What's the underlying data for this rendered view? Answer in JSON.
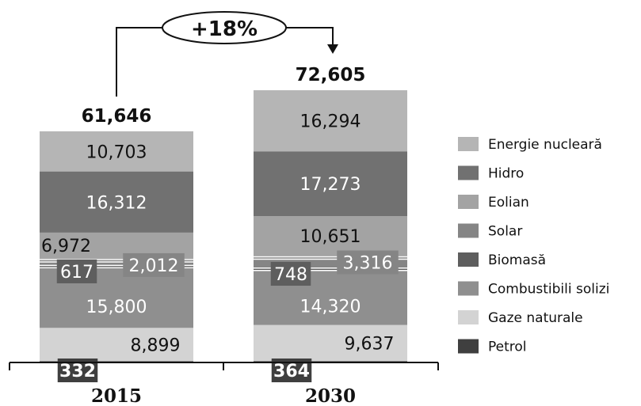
{
  "chart_data": {
    "type": "bar",
    "stacked": true,
    "categories": [
      "2015",
      "2030"
    ],
    "totals": [
      "61,646",
      "72,605"
    ],
    "growth_label": "+18%",
    "series": [
      {
        "name": "Petrol",
        "values": [
          332,
          364
        ],
        "labels": [
          "332",
          "364"
        ],
        "color": "#3f3f3f"
      },
      {
        "name": "Gaze naturale",
        "values": [
          8899,
          9637
        ],
        "labels": [
          "8,899",
          "9,637"
        ],
        "color": "#d3d3d3"
      },
      {
        "name": "Combustibili solizi",
        "values": [
          15800,
          14320
        ],
        "labels": [
          "15,800",
          "14,320"
        ],
        "color": "#8f8f8f"
      },
      {
        "name": "Biomasă",
        "values": [
          617,
          748
        ],
        "labels": [
          "617",
          "748"
        ],
        "color": "#5e5e5e"
      },
      {
        "name": "Solar",
        "values": [
          2012,
          3316
        ],
        "labels": [
          "2,012",
          "3,316"
        ],
        "color": "#858585"
      },
      {
        "name": "Eolian",
        "values": [
          6972,
          10651
        ],
        "labels": [
          "6,972",
          "10,651"
        ],
        "color": "#a3a3a3"
      },
      {
        "name": "Hidro",
        "values": [
          16312,
          17273
        ],
        "labels": [
          "16,312",
          "17,273"
        ],
        "color": "#717171"
      },
      {
        "name": "Energie nucleară",
        "values": [
          10703,
          16294
        ],
        "labels": [
          "10,703",
          "16,294"
        ],
        "color": "#b5b5b5"
      }
    ],
    "legend": [
      "Energie nucleară",
      "Hidro",
      "Eolian",
      "Solar",
      "Biomasă",
      "Combustibili solizi",
      "Gaze naturale",
      "Petrol"
    ],
    "legend_position": "right",
    "grid": false
  }
}
